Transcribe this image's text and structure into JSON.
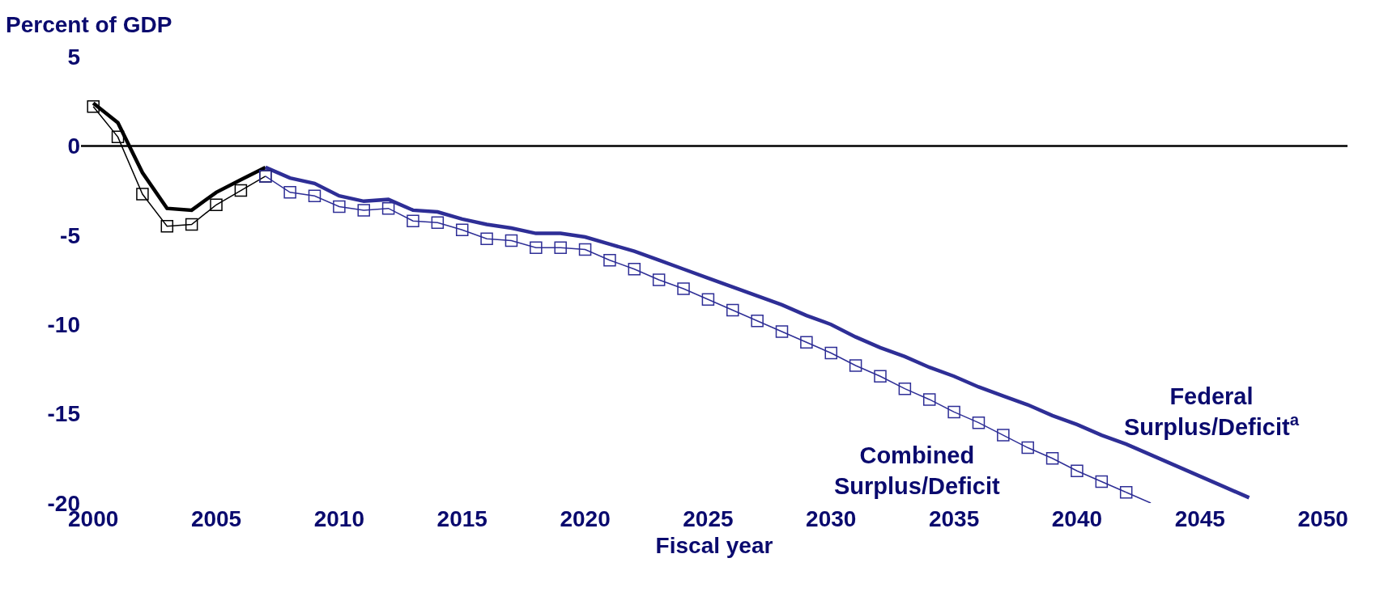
{
  "chart_data": {
    "type": "line",
    "xlabel": "Fiscal year",
    "ylabel": "Percent of GDP",
    "xlim": [
      1999.5,
      2051
    ],
    "ylim": [
      -20,
      5
    ],
    "xticks": [
      2000,
      2005,
      2010,
      2015,
      2020,
      2025,
      2030,
      2035,
      2040,
      2045,
      2050
    ],
    "yticks": [
      5,
      0,
      -5,
      -10,
      -15,
      -20
    ],
    "grid": false,
    "legend": false,
    "ref_lines": [
      {
        "axis": "y",
        "value": 0,
        "color": "#000000"
      }
    ],
    "series": [
      {
        "color": "#000000",
        "line_style": "solid",
        "marker": "none",
        "x": [
          2000,
          2001,
          2002,
          2003,
          2004,
          2005,
          2006,
          2007
        ],
        "values": [
          2.4,
          1.3,
          -1.5,
          -3.5,
          -3.6,
          -2.6,
          -1.9,
          -1.2
        ]
      },
      {
        "name": "Federal Surplus/Deficit$^{a}$",
        "color": "#2e2e96",
        "line_style": "solid",
        "marker": "none",
        "x": [
          2007,
          2008,
          2009,
          2010,
          2011,
          2012,
          2013,
          2014,
          2015,
          2016,
          2017,
          2018,
          2019,
          2020,
          2021,
          2022,
          2023,
          2024,
          2025,
          2026,
          2027,
          2028,
          2029,
          2030,
          2031,
          2032,
          2033,
          2034,
          2035,
          2036,
          2037,
          2038,
          2039,
          2040,
          2041,
          2042,
          2043,
          2044,
          2045,
          2046,
          2047
        ],
        "values": [
          -1.2,
          -1.8,
          -2.1,
          -2.8,
          -3.1,
          -3.0,
          -3.6,
          -3.7,
          -4.1,
          -4.4,
          -4.6,
          -4.9,
          -4.9,
          -5.1,
          -5.5,
          -5.9,
          -6.4,
          -6.9,
          -7.4,
          -7.9,
          -8.4,
          -8.9,
          -9.5,
          -10.0,
          -10.7,
          -11.3,
          -11.8,
          -12.4,
          -12.9,
          -13.5,
          -14.0,
          -14.5,
          -15.1,
          -15.6,
          -16.2,
          -16.7,
          -17.3,
          -17.9,
          -18.5,
          -19.1,
          -19.7
        ]
      },
      {
        "color": "#000000",
        "line_style": "solid",
        "marker": "square",
        "x": [
          2000,
          2001,
          2002,
          2003,
          2004,
          2005,
          2006,
          2007
        ],
        "values": [
          2.2,
          0.5,
          -2.7,
          -4.5,
          -4.4,
          -3.3,
          -2.5,
          -1.7
        ]
      },
      {
        "name": "Combined Surplus/Deficit",
        "color": "#2e2e96",
        "line_style": "solid",
        "marker": "square",
        "x": [
          2007,
          2008,
          2009,
          2010,
          2011,
          2012,
          2013,
          2014,
          2015,
          2016,
          2017,
          2018,
          2019,
          2020,
          2021,
          2022,
          2023,
          2024,
          2025,
          2026,
          2027,
          2028,
          2029,
          2030,
          2031,
          2032,
          2033,
          2034,
          2035,
          2036,
          2037,
          2038,
          2039,
          2040,
          2041,
          2042
        ],
        "values": [
          -1.7,
          -2.6,
          -2.8,
          -3.4,
          -3.6,
          -3.5,
          -4.2,
          -4.3,
          -4.7,
          -5.2,
          -5.3,
          -5.7,
          -5.7,
          -5.8,
          -6.4,
          -6.9,
          -7.5,
          -8.0,
          -8.6,
          -9.2,
          -9.8,
          -10.4,
          -11.0,
          -11.6,
          -12.3,
          -12.9,
          -13.6,
          -14.2,
          -14.9,
          -15.5,
          -16.2,
          -16.9,
          -17.5,
          -18.2,
          -18.8,
          -19.4
        ]
      },
      {
        "color": "#2e2e96",
        "line_style": "solid",
        "marker": "none",
        "x": [
          2042,
          2043
        ],
        "values": [
          -19.4,
          -20.0
        ]
      }
    ]
  }
}
